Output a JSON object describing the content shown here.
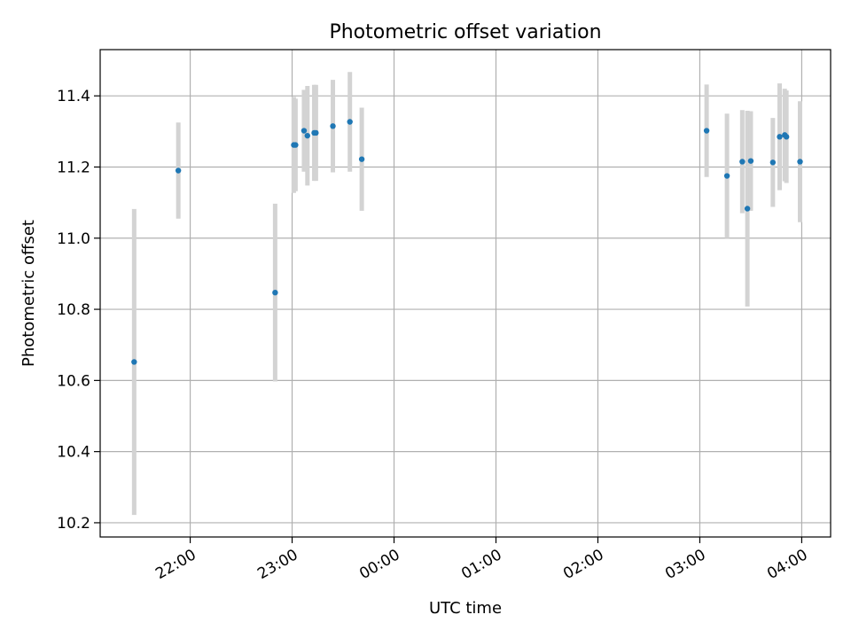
{
  "chart_data": {
    "type": "scatter",
    "title": "Photometric offset variation",
    "xlabel": "UTC time",
    "ylabel": "Photometric offset",
    "x_unit": "UTC time (HH:MM), times after midnight fall on the following day",
    "xlim": [
      "21:07",
      "04:17"
    ],
    "ylim": [
      10.16,
      11.53
    ],
    "x_ticks": [
      "22:00",
      "23:00",
      "00:00",
      "01:00",
      "02:00",
      "03:00",
      "04:00"
    ],
    "y_ticks": [
      10.2,
      10.4,
      10.6,
      10.8,
      11.0,
      11.2,
      11.4
    ],
    "grid": true,
    "legend": "none",
    "marker_color": "#1f77b4",
    "errorbar_color": "#d3d3d3",
    "points": [
      {
        "x": "21:27",
        "y": 10.652,
        "err": 0.43
      },
      {
        "x": "21:53",
        "y": 11.19,
        "err": 0.135
      },
      {
        "x": "22:50",
        "y": 10.847,
        "err": 0.25
      },
      {
        "x": "23:01",
        "y": 11.262,
        "err": 0.135
      },
      {
        "x": "23:02",
        "y": 11.262,
        "err": 0.13
      },
      {
        "x": "23:07",
        "y": 11.302,
        "err": 0.115
      },
      {
        "x": "23:09",
        "y": 11.288,
        "err": 0.14
      },
      {
        "x": "23:13",
        "y": 11.296,
        "err": 0.135
      },
      {
        "x": "23:14",
        "y": 11.296,
        "err": 0.135
      },
      {
        "x": "23:24",
        "y": 11.315,
        "err": 0.13
      },
      {
        "x": "23:34",
        "y": 11.327,
        "err": 0.14
      },
      {
        "x": "23:41",
        "y": 11.222,
        "err": 0.145
      },
      {
        "x": "03:04",
        "y": 11.302,
        "err": 0.13
      },
      {
        "x": "03:16",
        "y": 11.175,
        "err": 0.175
      },
      {
        "x": "03:25",
        "y": 11.215,
        "err": 0.145
      },
      {
        "x": "03:28",
        "y": 11.083,
        "err": 0.275
      },
      {
        "x": "03:30",
        "y": 11.217,
        "err": 0.14
      },
      {
        "x": "03:43",
        "y": 11.213,
        "err": 0.125
      },
      {
        "x": "03:47",
        "y": 11.285,
        "err": 0.15
      },
      {
        "x": "03:50",
        "y": 11.29,
        "err": 0.13
      },
      {
        "x": "03:51",
        "y": 11.285,
        "err": 0.13
      },
      {
        "x": "03:59",
        "y": 11.215,
        "err": 0.17
      }
    ]
  }
}
